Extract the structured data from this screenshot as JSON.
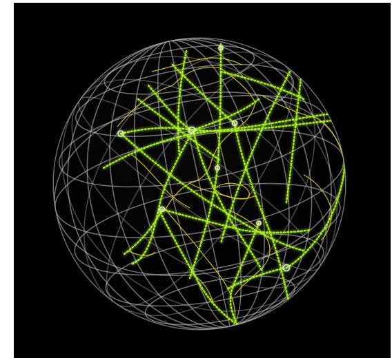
{
  "image": {
    "subject": "globe-visualization",
    "background_color": "#000000",
    "frame_color": "#ffffff",
    "grid_color": "#c8c8c8",
    "route_color": "#a8f020",
    "coast_color": "#e3d21a",
    "node_color": "#e6ffc8"
  }
}
